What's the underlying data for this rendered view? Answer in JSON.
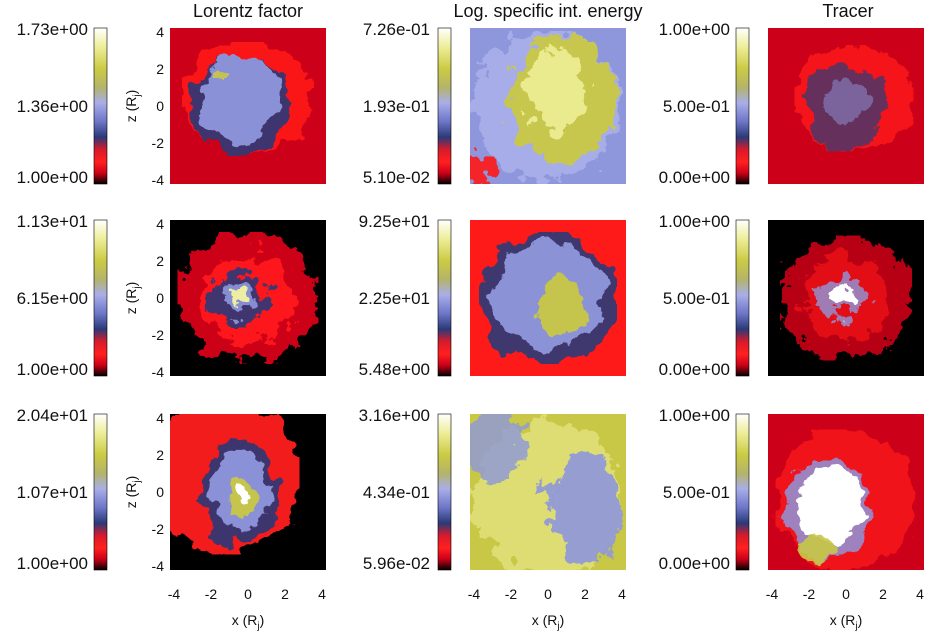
{
  "figure": {
    "column_titles": [
      "Lorentz factor",
      "Log. specific int. energy",
      "Tracer"
    ],
    "x_axis_label": "x (R",
    "y_axis_label": "z (R",
    "axis_subscript": "j",
    "axis_suffix": ")",
    "x_ticks": [
      "-4",
      "-2",
      "0",
      "2",
      "4"
    ],
    "z_ticks": [
      "4",
      "2",
      "0",
      "-2",
      "-4"
    ],
    "colorbar_labels": [
      [
        [
          "1.73e+00",
          "1.36e+00",
          "1.00e+00"
        ],
        [
          "7.26e-01",
          "1.93e-01",
          "5.10e-02"
        ],
        [
          "1.00e+00",
          "5.00e-01",
          "0.00e+00"
        ]
      ],
      [
        [
          "1.13e+01",
          "6.15e+00",
          "1.00e+00"
        ],
        [
          "9.25e+01",
          "2.25e+01",
          "5.48e+00"
        ],
        [
          "1.00e+00",
          "5.00e-01",
          "0.00e+00"
        ]
      ],
      [
        [
          "2.04e+01",
          "1.07e+01",
          "1.00e+00"
        ],
        [
          "3.16e+00",
          "4.34e-01",
          "5.96e-02"
        ],
        [
          "1.00e+00",
          "5.00e-01",
          "0.00e+00"
        ]
      ]
    ],
    "colormap": [
      "#000000",
      "#cc0018",
      "#ff1a1a",
      "#2a3a78",
      "#8f97dc",
      "#b8bdf0",
      "#c8c846",
      "#f2f2a0",
      "#ffffff"
    ]
  }
}
